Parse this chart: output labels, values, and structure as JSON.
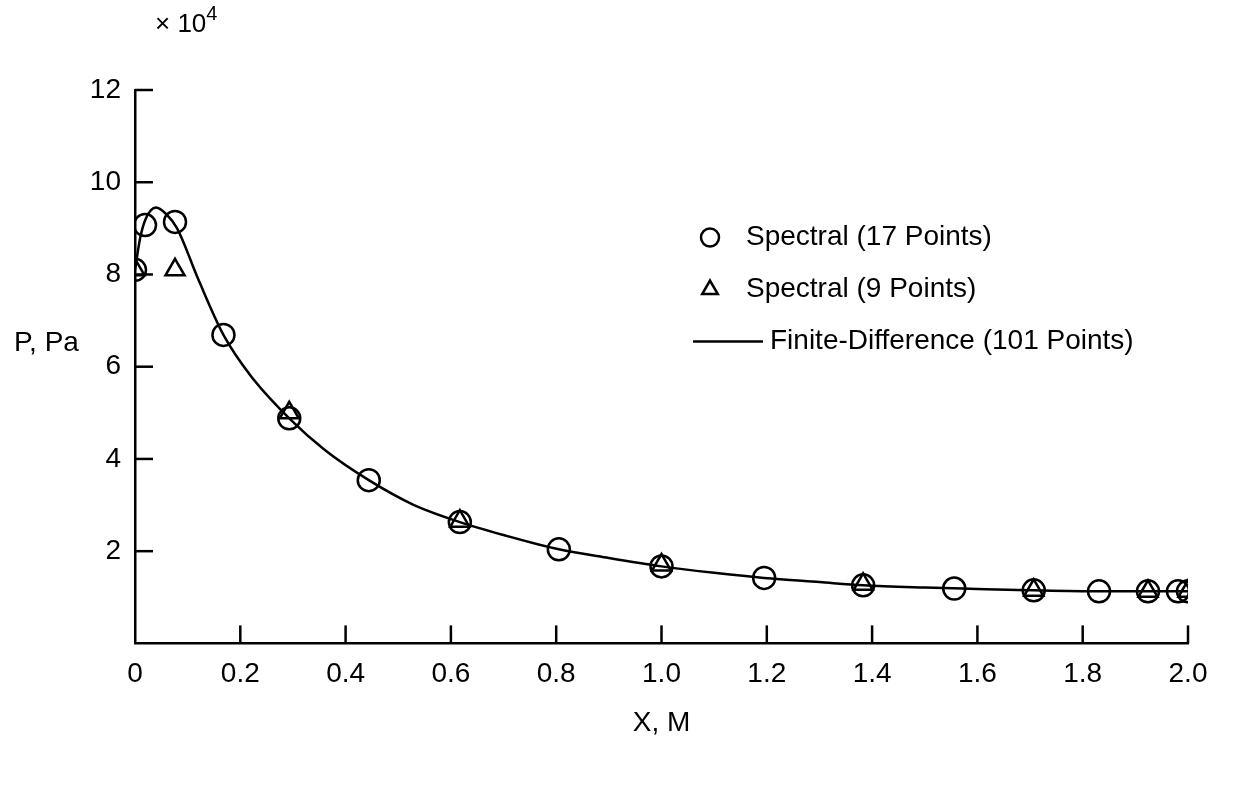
{
  "chart_data": {
    "type": "scatter",
    "xlabel": "X, M",
    "ylabel": "P, Pa",
    "annotations": [
      "× 10$^{4}$"
    ],
    "xlim": [
      0,
      2
    ],
    "ylim": [
      0,
      12
    ],
    "xticks": [
      {
        "value": 0,
        "label": "0"
      },
      0.2,
      0.4,
      0.6,
      0.8,
      {
        "value": 1,
        "label": "1.0"
      },
      1.2,
      1.4,
      1.6,
      1.8,
      {
        "value": 2,
        "label": "2.0"
      }
    ],
    "yticks": [
      {
        "value": 0,
        "label": null
      },
      2,
      4,
      6,
      8,
      10,
      12
    ],
    "grid": false,
    "legend": "right",
    "series": [
      {
        "name": "Spectral (17 Points)",
        "marker": "circle",
        "color": "#000000",
        "x": [
          0,
          0.019,
          0.076,
          0.168,
          0.293,
          0.444,
          0.617,
          0.805,
          1.0,
          1.195,
          1.383,
          1.556,
          1.707,
          1.831,
          1.924,
          1.981,
          2.0
        ],
        "values": [
          8.1,
          9.07,
          9.14,
          6.69,
          4.88,
          3.54,
          2.63,
          2.04,
          1.67,
          1.42,
          1.26,
          1.19,
          1.15,
          1.13,
          1.13,
          1.13,
          1.13
        ]
      },
      {
        "name": "Spectral (9 Points)",
        "marker": "triangle",
        "color": "#000000",
        "x": [
          0,
          0.076,
          0.293,
          0.617,
          1.0,
          1.383,
          1.707,
          1.924,
          2.0
        ],
        "values": [
          8.1,
          8.1,
          5.0,
          2.65,
          1.7,
          1.28,
          1.15,
          1.13,
          1.13
        ]
      },
      {
        "name": "Finite-Difference (101 Points)",
        "type": "line",
        "marker": "none",
        "line_style": "solid",
        "color": "#000000",
        "x": [
          0,
          0.01,
          0.02,
          0.04,
          0.06,
          0.08,
          0.12,
          0.168,
          0.22,
          0.293,
          0.36,
          0.444,
          0.53,
          0.617,
          0.7,
          0.805,
          0.9,
          1.0,
          1.1,
          1.195,
          1.3,
          1.383,
          1.5,
          1.6,
          1.707,
          1.831,
          2.0
        ],
        "values": [
          8.1,
          8.8,
          9.2,
          9.45,
          9.3,
          9.0,
          7.9,
          6.69,
          5.8,
          4.88,
          4.2,
          3.54,
          3.0,
          2.63,
          2.35,
          2.04,
          1.85,
          1.67,
          1.53,
          1.42,
          1.33,
          1.26,
          1.21,
          1.18,
          1.15,
          1.13,
          1.13
        ]
      }
    ]
  }
}
